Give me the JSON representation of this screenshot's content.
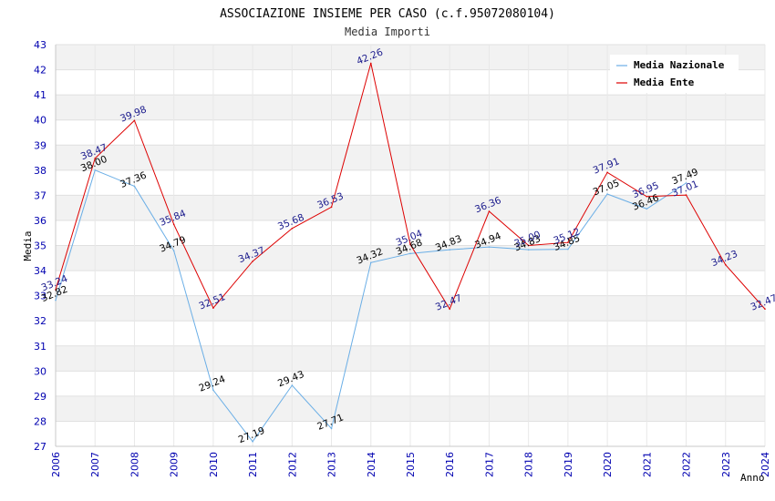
{
  "chart_data": {
    "type": "line",
    "title": "ASSOCIAZIONE INSIEME PER CASO (c.f.95072080104)",
    "subtitle": "Media Importi",
    "xlabel": "Anno",
    "ylabel": "Media",
    "ylim": [
      27,
      43
    ],
    "yticks": [
      "27",
      "28",
      "29",
      "30",
      "31",
      "32",
      "33",
      "34",
      "35",
      "36",
      "37",
      "38",
      "39",
      "40",
      "41",
      "42",
      "43"
    ],
    "categories": [
      "2006",
      "2007",
      "2008",
      "2009",
      "2010",
      "2011",
      "2012",
      "2013",
      "2014",
      "2015",
      "2016",
      "2017",
      "2018",
      "2019",
      "2020",
      "2021",
      "2022",
      "2023",
      "2024"
    ],
    "series": [
      {
        "name": "Media Nazionale",
        "color": "#6aaee6",
        "label_color": "#000000",
        "values": [
          32.82,
          38.0,
          37.36,
          34.79,
          29.24,
          27.19,
          29.43,
          27.71,
          34.32,
          34.68,
          34.83,
          34.94,
          34.83,
          34.85,
          37.05,
          36.46,
          37.49,
          null,
          null
        ],
        "labels": [
          "32.82",
          "38.00",
          "37.36",
          "34.79",
          "29.24",
          "27.19",
          "29.43",
          "27.71",
          "34.32",
          "34.68",
          "34.83",
          "34.94",
          "34.83",
          "34.85",
          "37.05",
          "36.46",
          "37.49",
          "",
          ""
        ]
      },
      {
        "name": "Media Ente",
        "color": "#dd0000",
        "label_color": "#1a1a8c",
        "values": [
          33.24,
          38.47,
          39.98,
          35.84,
          32.51,
          34.37,
          35.68,
          36.53,
          42.26,
          35.04,
          32.47,
          36.36,
          35.0,
          35.12,
          37.91,
          36.95,
          37.01,
          34.23,
          32.47
        ],
        "labels": [
          "33.24",
          "38.47",
          "39.98",
          "35.84",
          "32.51",
          "34.37",
          "35.68",
          "36.53",
          "42.26",
          "35.04",
          "32.47",
          "36.36",
          "35.00",
          "35.12",
          "37.91",
          "36.95",
          "37.01",
          "34.23",
          "32.47"
        ]
      }
    ],
    "legend_position": "top-right",
    "grid": true
  }
}
